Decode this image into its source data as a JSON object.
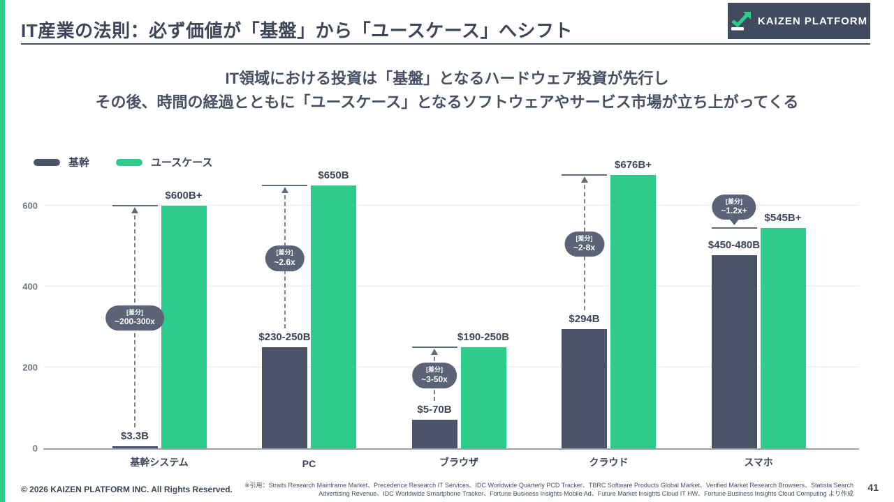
{
  "accent_green": "#2ECC8B",
  "header": {
    "title": "IT産業の法則：必ず価値が「基盤」から「ユースケース」へシフト",
    "logo_text": "KAIZEN PLATFORM"
  },
  "subtitle": {
    "line1": "IT領域における投資は「基盤」となるハードウェア投資が先行し",
    "line2": "その後、時間の経過とともに「ユースケース」となるソフトウェアやサービス市場が立ち上がってくる"
  },
  "chart_data": {
    "type": "bar",
    "title": "",
    "xlabel": "",
    "ylabel": "",
    "categories": [
      "基幹システム",
      "PC",
      "ブラウザ",
      "クラウド",
      "スマホ"
    ],
    "yticks": [
      0,
      200,
      400,
      600
    ],
    "ylim": [
      0,
      700
    ],
    "grid": true,
    "legend_position": "top-left",
    "series": [
      {
        "name": "基幹",
        "color": "#4B5368",
        "values": [
          3.3,
          250,
          70,
          294,
          478
        ],
        "labels": [
          "$3.3B",
          "$230-250B",
          "$5-70B",
          "$294B",
          "$450-480B"
        ]
      },
      {
        "name": "ユースケース",
        "color": "#2ECC8B",
        "values": [
          600,
          650,
          250,
          676,
          545
        ],
        "labels": [
          "$600B+",
          "$650B",
          "$190-250B",
          "$676B+",
          "$545B+"
        ]
      }
    ],
    "diff_annotations": [
      {
        "label": "[差分]",
        "value": "~200-300x",
        "style": "arrow"
      },
      {
        "label": "[差分]",
        "value": "~2.6x",
        "style": "arrow"
      },
      {
        "label": "[差分]",
        "value": "~3-50x",
        "style": "arrow"
      },
      {
        "label": "[差分]",
        "value": "~2-8x",
        "style": "arrow"
      },
      {
        "label": "[差分]",
        "value": "~1.2x+",
        "style": "bubble"
      }
    ]
  },
  "footer": {
    "copyright": "© 2026 KAIZEN PLATFORM INC. All Rights Reserved.",
    "citation_line1": "※引用：Straits Research Mainframe Market、Precedence Research IT Services、IDC Worldwide Quarterly PCD Tracker、TBRC Software Products Global Market、Verified Market Research Browsers、Statista Search",
    "citation_line2": "Advertising Revenue、IDC Worldwide Smartphone Tracker、Fortune Business Insights Mobile Ad、Future Market Insights Cloud IT HW、Fortune Business Insights Cloud Computing より作成",
    "page_number": "41"
  }
}
